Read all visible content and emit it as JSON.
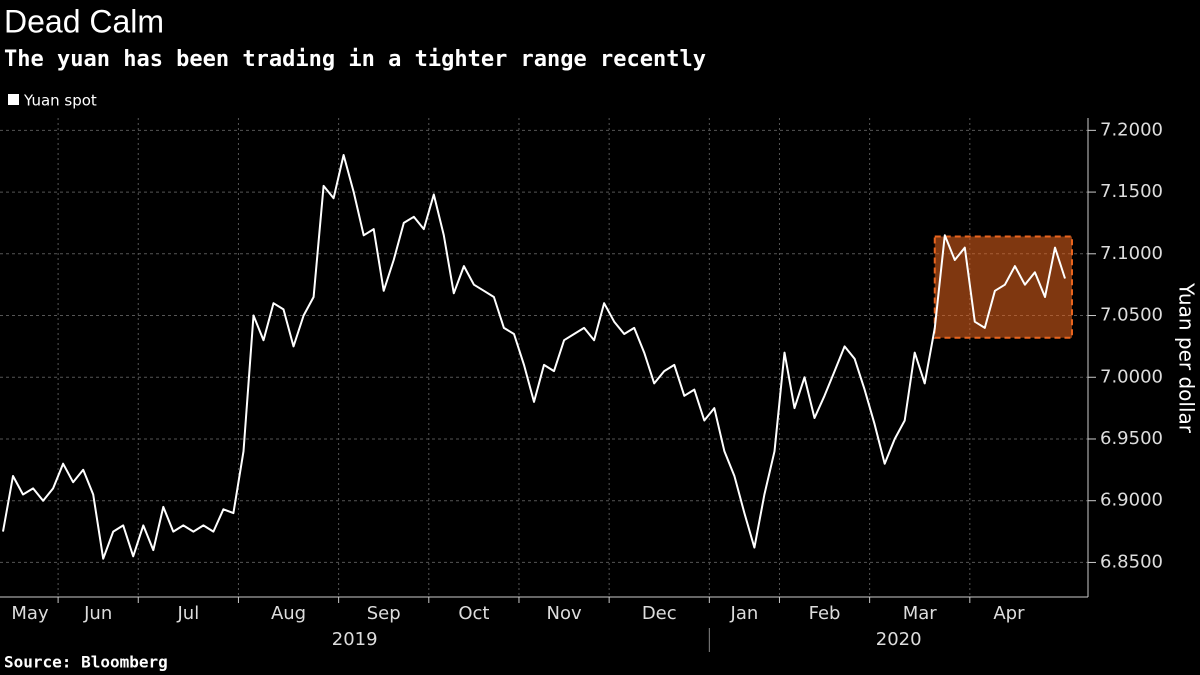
{
  "chart_data": {
    "type": "line",
    "title": "Dead Calm",
    "subtitle": "The yuan has been trading in a tighter range recently",
    "source": "Source: Bloomberg",
    "y_axis_label": "Yuan per dollar",
    "categories": [
      "May",
      null,
      null,
      null,
      null,
      null,
      "Jun",
      null,
      null,
      null,
      null,
      null,
      null,
      null,
      "Jul",
      null,
      null,
      null,
      null,
      null,
      null,
      null,
      null,
      null,
      "Aug",
      null,
      null,
      null,
      null,
      null,
      null,
      null,
      null,
      null,
      "Sep",
      null,
      null,
      null,
      null,
      null,
      null,
      null,
      null,
      "Oct",
      null,
      null,
      null,
      null,
      null,
      null,
      null,
      null,
      "Nov",
      null,
      null,
      null,
      null,
      null,
      null,
      null,
      null,
      "Dec",
      null,
      null,
      null,
      null,
      null,
      null,
      null,
      null,
      null,
      "Jan",
      null,
      null,
      null,
      null,
      null,
      null,
      "Feb",
      null,
      null,
      null,
      null,
      null,
      null,
      null,
      null,
      "Mar",
      null,
      null,
      null,
      null,
      null,
      null,
      null,
      null,
      null,
      "Apr",
      null,
      null,
      null,
      null,
      null,
      null,
      null,
      null,
      null
    ],
    "x_groups": [
      {
        "label": "2019",
        "span": 8
      },
      {
        "label": "2020",
        "span": 4
      }
    ],
    "series": [
      {
        "name": "Yuan spot",
        "color": "#ffffff",
        "values": [
          6.875,
          6.92,
          6.905,
          6.91,
          6.9,
          6.91,
          6.93,
          6.915,
          6.925,
          6.905,
          6.853,
          6.875,
          6.88,
          6.855,
          6.88,
          6.86,
          6.895,
          6.875,
          6.88,
          6.875,
          6.88,
          6.875,
          6.893,
          6.89,
          6.94,
          7.05,
          7.03,
          7.06,
          7.055,
          7.025,
          7.05,
          7.065,
          7.155,
          7.145,
          7.18,
          7.15,
          7.115,
          7.12,
          7.07,
          7.095,
          7.125,
          7.13,
          7.12,
          7.148,
          7.115,
          7.068,
          7.09,
          7.075,
          7.07,
          7.065,
          7.04,
          7.035,
          7.01,
          6.98,
          7.01,
          7.005,
          7.03,
          7.035,
          7.04,
          7.03,
          7.06,
          7.045,
          7.035,
          7.04,
          7.02,
          6.995,
          7.005,
          7.01,
          6.985,
          6.99,
          6.965,
          6.975,
          6.94,
          6.92,
          6.89,
          6.862,
          6.905,
          6.94,
          7.02,
          6.975,
          7.0,
          6.967,
          6.985,
          7.005,
          7.025,
          7.015,
          6.99,
          6.962,
          6.93,
          6.95,
          6.965,
          7.02,
          6.995,
          7.04,
          7.115,
          7.095,
          7.105,
          7.045,
          7.04,
          7.07,
          7.075,
          7.09,
          7.075,
          7.085,
          7.065,
          7.105,
          7.08
        ]
      }
    ],
    "highlight": {
      "start_category_index": 93,
      "ylim": [
        7.032,
        7.114
      ],
      "color": "#e8641e"
    },
    "ylim": [
      6.822,
      7.21
    ],
    "yticks": [
      {
        "value": 6.85,
        "label": "6.8500"
      },
      {
        "value": 6.9,
        "label": "6.9000"
      },
      {
        "value": 6.95,
        "label": "6.9500"
      },
      {
        "value": 7.0,
        "label": "7.0000"
      },
      {
        "value": 7.05,
        "label": "7.0500"
      },
      {
        "value": 7.1,
        "label": "7.1000"
      },
      {
        "value": 7.15,
        "label": "7.1500"
      },
      {
        "value": 7.2,
        "label": "7.2000"
      }
    ],
    "grid": true,
    "legend": "top-left"
  }
}
